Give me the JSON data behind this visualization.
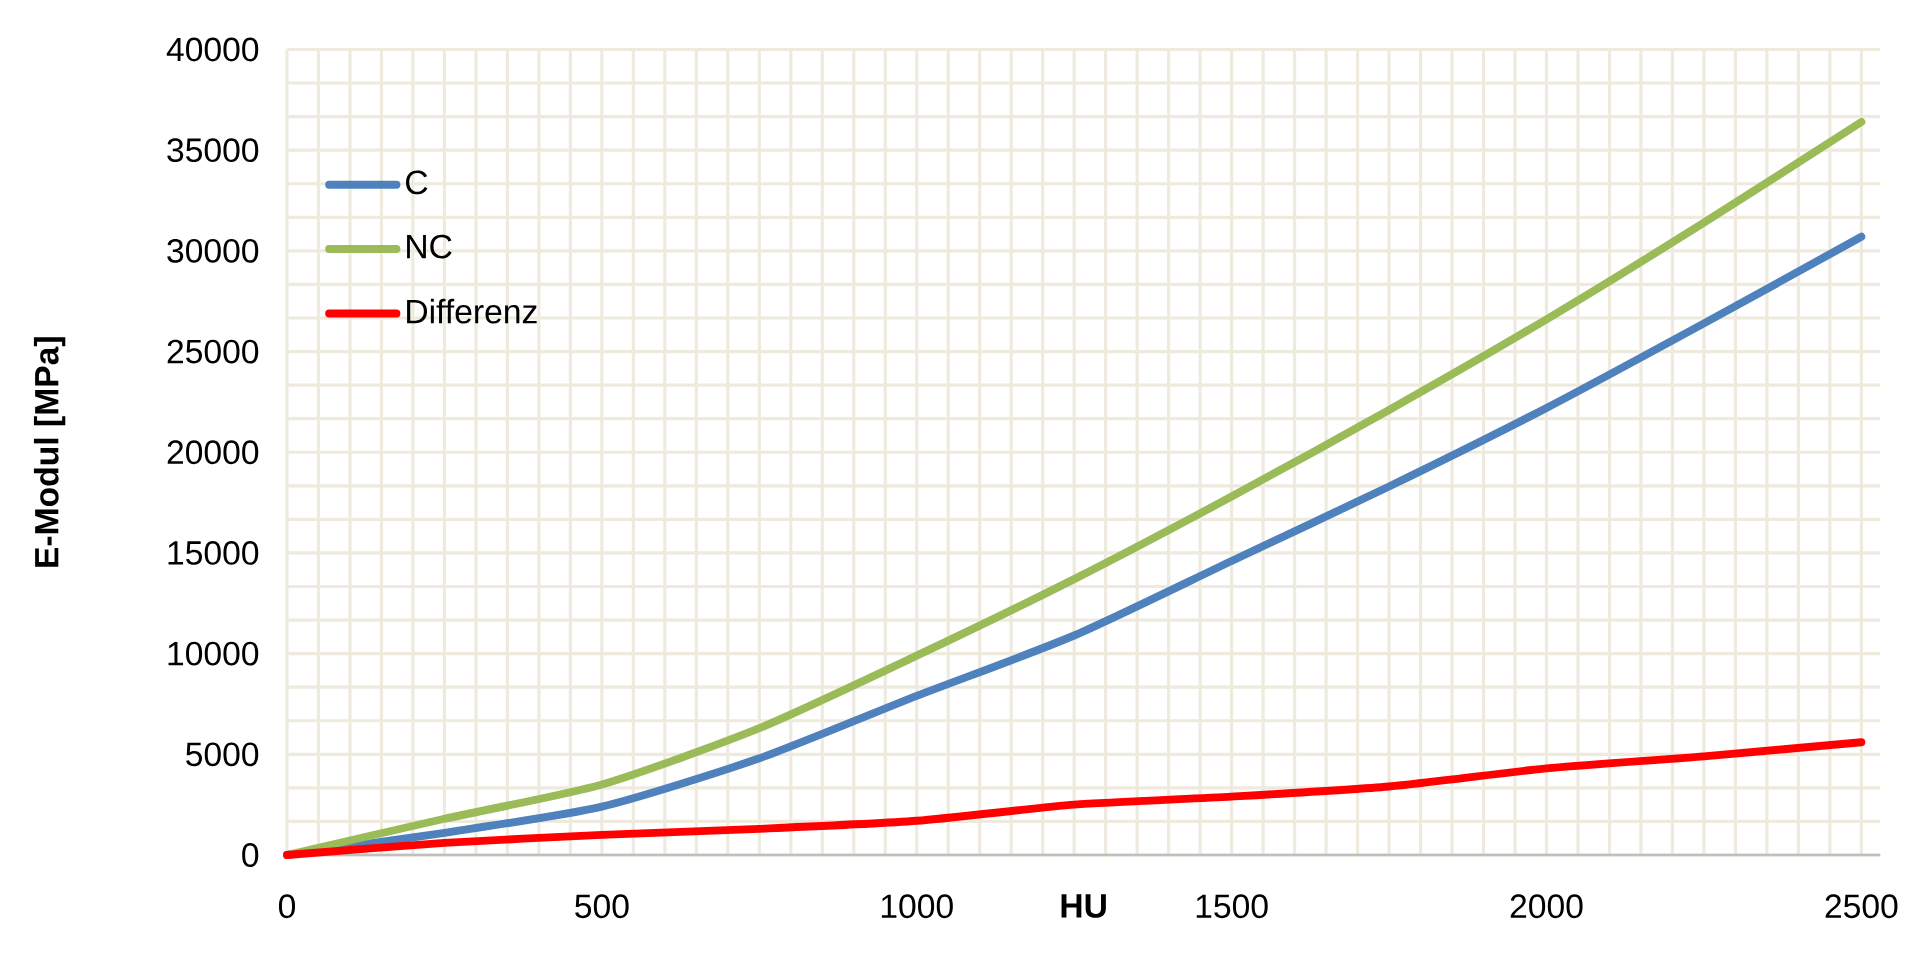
{
  "chart_data": {
    "type": "line",
    "xlabel": "HU",
    "ylabel": "E-Modul [MPa]",
    "x": [
      0,
      250,
      500,
      750,
      1000,
      1250,
      1500,
      1750,
      2000,
      2250,
      2500
    ],
    "series": [
      {
        "name": "C",
        "color": "#4f81bd",
        "values": [
          0,
          1100,
          2400,
          4800,
          7900,
          10900,
          14600,
          18300,
          22200,
          26400,
          30700
        ]
      },
      {
        "name": "NC",
        "color": "#9bbb59",
        "values": [
          0,
          1800,
          3500,
          6300,
          9900,
          13700,
          17800,
          22100,
          26600,
          31400,
          36400
        ]
      },
      {
        "name": "Differenz",
        "color": "#ff0000",
        "values": [
          0,
          600,
          1000,
          1300,
          1700,
          2500,
          2900,
          3400,
          4300,
          4900,
          5600
        ]
      }
    ],
    "xlim": [
      0,
      2530
    ],
    "ylim": [
      0,
      40000
    ],
    "xticks": [
      0,
      500,
      1000,
      1500,
      2000,
      2500
    ],
    "yticks": [
      0,
      5000,
      10000,
      15000,
      20000,
      25000,
      30000,
      35000,
      40000
    ],
    "grid": true,
    "legend": "top left",
    "marker": "none",
    "line_style": "solid"
  }
}
